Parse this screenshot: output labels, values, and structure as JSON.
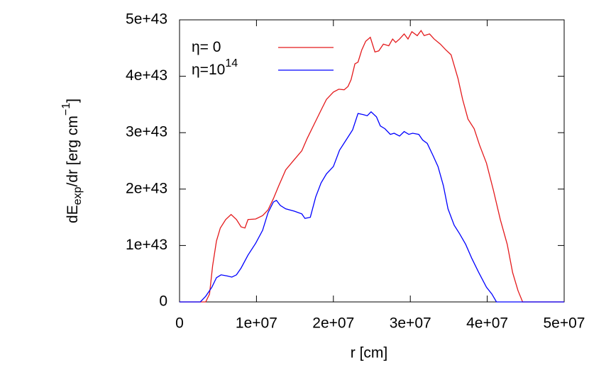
{
  "chart_data": {
    "type": "line",
    "xlabel": "r [cm]",
    "ylabel": [
      "dE",
      "exp",
      "/dr [erg cm",
      "−1",
      "]"
    ],
    "xlim": [
      0,
      50000000
    ],
    "ylim": [
      0,
      5e+43
    ],
    "xticks": [
      0,
      {
        "value": 10000000,
        "label": "1e+07"
      },
      {
        "value": 20000000,
        "label": "2e+07"
      },
      {
        "value": 30000000,
        "label": "3e+07"
      },
      {
        "value": 40000000,
        "label": "4e+07"
      },
      {
        "value": 50000000,
        "label": "5e+07"
      }
    ],
    "yticks": [
      0,
      {
        "value": 1e+43,
        "label": "1e+43"
      },
      {
        "value": 2e+43,
        "label": "2e+43"
      },
      {
        "value": 3e+43,
        "label": "3e+43"
      },
      {
        "value": 4e+43,
        "label": "4e+43"
      },
      {
        "value": 5e+43,
        "label": "5e+43"
      }
    ],
    "legend": "top-left",
    "series": [
      {
        "name": "η= 0",
        "color": "#e41a1c",
        "x": [
          0,
          3400000,
          3900000,
          4300000,
          4800000,
          5300000,
          6000000,
          6700000,
          7400000,
          8000000,
          8500000,
          8900000,
          9900000,
          10800000,
          11500000,
          12200000,
          12900000,
          13800000,
          14900000,
          15900000,
          16600000,
          17500000,
          18400000,
          19100000,
          20000000,
          20700000,
          21400000,
          21900000,
          22300000,
          22800000,
          23200000,
          23700000,
          24200000,
          24800000,
          25400000,
          25900000,
          26500000,
          27200000,
          27700000,
          28100000,
          28600000,
          29200000,
          29700000,
          30200000,
          30900000,
          31400000,
          31800000,
          32500000,
          33100000,
          33900000,
          34600000,
          35300000,
          36200000,
          36800000,
          37500000,
          38300000,
          39000000,
          39900000,
          40800000,
          41700000,
          42600000,
          43300000,
          44000000,
          44600000,
          50000000
        ],
        "values": [
          0,
          0,
          1.4e+42,
          6.4e+42,
          1.08e+43,
          1.31e+43,
          1.46e+43,
          1.55e+43,
          1.46e+43,
          1.33e+43,
          1.31e+43,
          1.46e+43,
          1.47e+43,
          1.53e+43,
          1.63e+43,
          1.83e+43,
          2.06e+43,
          2.34e+43,
          2.52e+43,
          2.68e+43,
          2.9e+43,
          3.15e+43,
          3.4e+43,
          3.59e+43,
          3.72e+43,
          3.77e+43,
          3.76e+43,
          3.82e+43,
          3.94e+43,
          4.22e+43,
          4.25e+43,
          4.47e+43,
          4.62e+43,
          4.69e+43,
          4.43e+43,
          4.45e+43,
          4.57e+43,
          4.54e+43,
          4.66e+43,
          4.6e+43,
          4.66e+43,
          4.75e+43,
          4.66e+43,
          4.79e+43,
          4.72e+43,
          4.81e+43,
          4.72e+43,
          4.75e+43,
          4.66e+43,
          4.57e+43,
          4.47e+43,
          4.38e+43,
          3.96e+43,
          3.59e+43,
          3.24e+43,
          3.07e+43,
          2.78e+43,
          2.46e+43,
          1.98e+43,
          1.46e+43,
          1.02e+43,
          5.2e+42,
          2e+42,
          0,
          0
        ]
      },
      {
        "name": "η=10",
        "name_sup": "14",
        "color": "#0000ff",
        "x": [
          0,
          2700000,
          3400000,
          4200000,
          4800000,
          5400000,
          6200000,
          6800000,
          7400000,
          8000000,
          8900000,
          9900000,
          10800000,
          11500000,
          12200000,
          12600000,
          13100000,
          13800000,
          14900000,
          15900000,
          16300000,
          17000000,
          17700000,
          18400000,
          19100000,
          20000000,
          20800000,
          21700000,
          22500000,
          23200000,
          23900000,
          24400000,
          24900000,
          25600000,
          26100000,
          26700000,
          27400000,
          27900000,
          28600000,
          29200000,
          29800000,
          30300000,
          31100000,
          31600000,
          32200000,
          32900000,
          33600000,
          34300000,
          34900000,
          35700000,
          36400000,
          37200000,
          38000000,
          38900000,
          39900000,
          40600000,
          41200000,
          50000000
        ],
        "values": [
          0,
          0,
          1e+42,
          2.6e+42,
          4.3e+42,
          4.8e+42,
          4.6e+42,
          4.4e+42,
          4.8e+42,
          6e+42,
          8.3e+42,
          1.04e+43,
          1.27e+43,
          1.58e+43,
          1.77e+43,
          1.8e+43,
          1.71e+43,
          1.65e+43,
          1.61e+43,
          1.56e+43,
          1.48e+43,
          1.5e+43,
          1.86e+43,
          2.11e+43,
          2.27e+43,
          2.4e+43,
          2.69e+43,
          2.88e+43,
          3.05e+43,
          3.34e+43,
          3.32e+43,
          3.3e+43,
          3.37e+43,
          3.28e+43,
          3.12e+43,
          3.07e+43,
          2.97e+43,
          2.99e+43,
          2.94e+43,
          3.02e+43,
          2.97e+43,
          2.99e+43,
          2.97e+43,
          2.87e+43,
          2.81e+43,
          2.61e+43,
          2.4e+43,
          2.06e+43,
          1.65e+43,
          1.36e+43,
          1.21e+43,
          1.02e+43,
          7.7e+42,
          5.2e+42,
          2.6e+42,
          1.4e+42,
          0,
          0
        ]
      }
    ]
  }
}
